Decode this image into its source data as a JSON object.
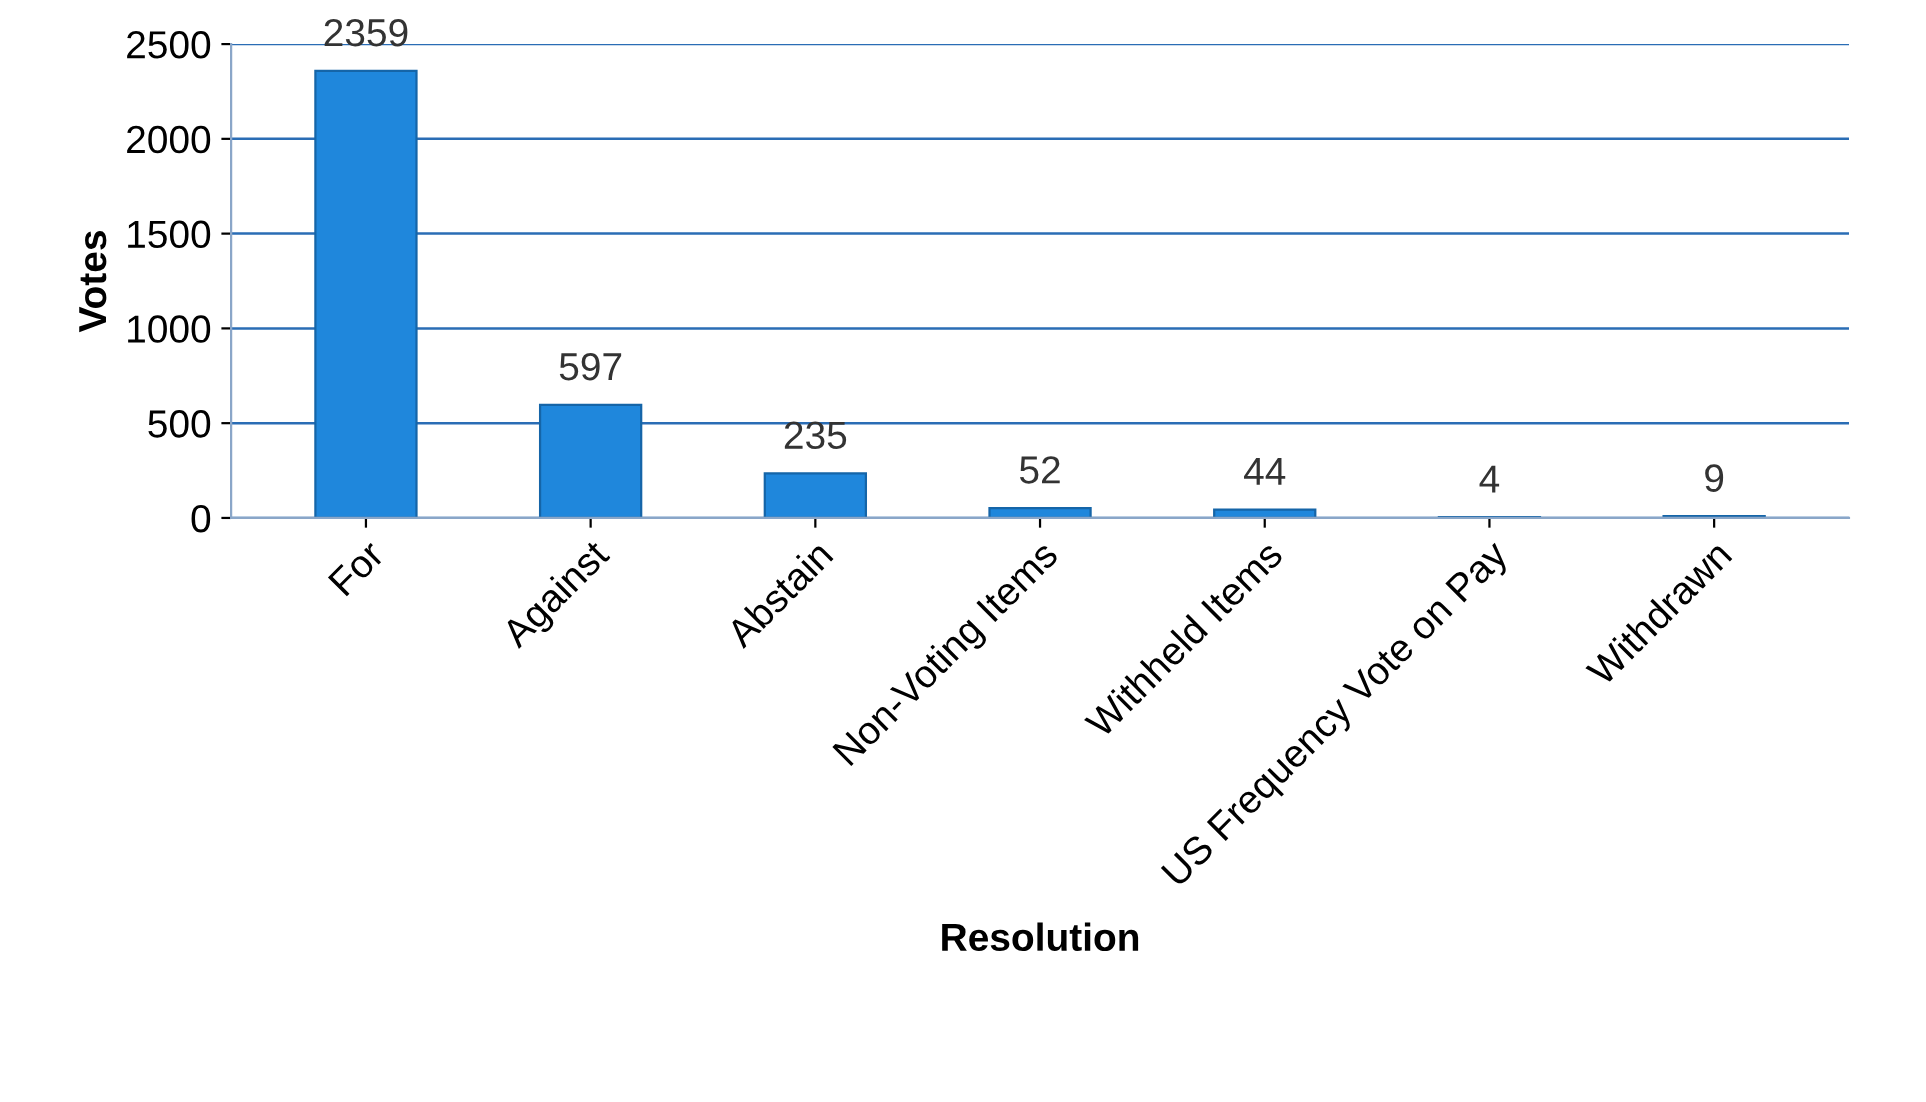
{
  "chart_data": {
    "type": "bar",
    "xlabel": "Resolution",
    "ylabel": "Votes",
    "categories": [
      "For",
      "Against",
      "Abstain",
      "Non-Voting Items",
      "Withheld Items",
      "US Frequency Vote on Pay",
      "Withdrawn"
    ],
    "values": [
      2359,
      597,
      235,
      52,
      44,
      4,
      9
    ],
    "color": "#1f87dc",
    "ylim": [
      0,
      2500
    ],
    "yticks": [
      0,
      500,
      1000,
      1500,
      2000,
      2500
    ],
    "grid": "y",
    "data_labels": true
  }
}
